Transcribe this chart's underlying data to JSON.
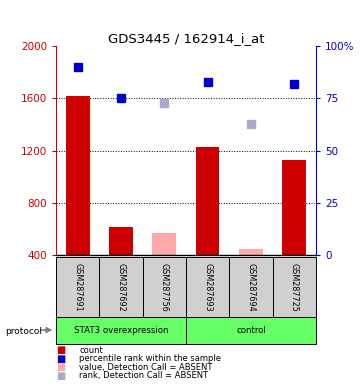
{
  "title": "GDS3445 / 162914_i_at",
  "samples": [
    "GSM287691",
    "GSM287692",
    "GSM287756",
    "GSM287693",
    "GSM287694",
    "GSM287725"
  ],
  "count_values": [
    1620,
    620,
    null,
    1230,
    null,
    1130
  ],
  "count_absent": [
    null,
    null,
    570,
    null,
    450,
    null
  ],
  "rank_pct": [
    90,
    75,
    null,
    83,
    null,
    82
  ],
  "rank_pct_absent": [
    null,
    null,
    73,
    null,
    63,
    null
  ],
  "ylim": [
    400,
    2000
  ],
  "yticks": [
    400,
    800,
    1200,
    1600,
    2000
  ],
  "y2ticks": [
    0,
    25,
    50,
    75,
    100
  ],
  "y2ticklabels": [
    "0",
    "25",
    "50",
    "75",
    "100%"
  ],
  "bar_color": "#cc0000",
  "bar_absent_color": "#ffaaaa",
  "rank_color": "#0000cc",
  "rank_absent_color": "#aaaacc",
  "group_fill": "#66ff66",
  "sample_box_color": "#d0d0d0",
  "left_axis_color": "#cc0000",
  "right_axis_color": "#0000cc",
  "stat3_label": "STAT3 overexpression",
  "control_label": "control",
  "legend_items": [
    [
      "#cc0000",
      "count"
    ],
    [
      "#0000cc",
      "percentile rank within the sample"
    ],
    [
      "#ffaaaa",
      "value, Detection Call = ABSENT"
    ],
    [
      "#aaaacc",
      "rank, Detection Call = ABSENT"
    ]
  ]
}
